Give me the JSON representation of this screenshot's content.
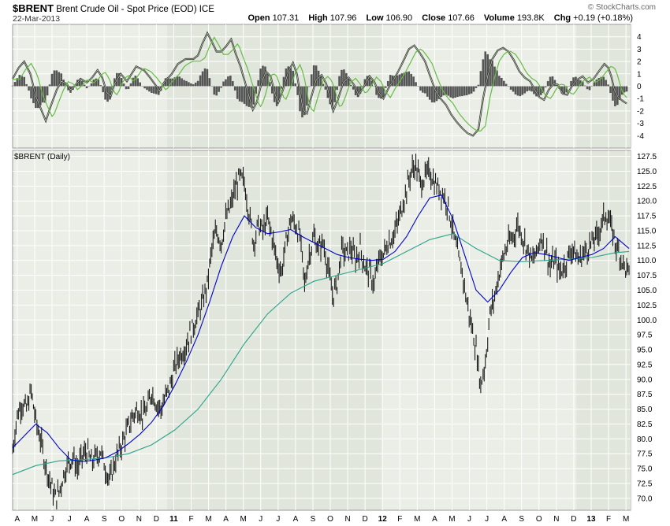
{
  "header": {
    "symbol": "$BRENT",
    "name": "Brent Crude Oil - Spot Price (EOD)",
    "exchange": "ICE",
    "date": "22-Mar-2013",
    "brand": "© StockCharts.com"
  },
  "quote": {
    "open_label": "Open",
    "open": "107.31",
    "high_label": "High",
    "high": "107.96",
    "low_label": "Low",
    "low": "106.90",
    "close_label": "Close",
    "close": "107.66",
    "volume_label": "Volume",
    "volume": "193.8K",
    "chg_label": "Chg",
    "chg": "+0.19 (+0.18%)"
  },
  "colors": {
    "price": "#1a1a1a",
    "ma_short": "#0000cc",
    "ma_long": "#2aa38a",
    "macd_line": "#333333",
    "signal_line": "#66bb44",
    "histogram": "#555555",
    "panel_bg": "#eaeee6",
    "panel_bg_alt": "#e1e6dc",
    "grid": "#ffffff"
  },
  "chart_data": [
    {
      "type": "area",
      "panel": "indicator",
      "ylim": [
        -5,
        5
      ],
      "yticks": [
        4,
        3,
        2,
        1,
        0,
        -1,
        -2,
        -3,
        -4
      ],
      "series": [],
      "points": [
        [
          0,
          0.6
        ],
        [
          8,
          1.5
        ],
        [
          15,
          2.0
        ],
        [
          23,
          1.0
        ],
        [
          30,
          -0.8
        ],
        [
          37,
          -1.9
        ],
        [
          43,
          -2.8
        ],
        [
          50,
          -1.5
        ],
        [
          57,
          -0.3
        ],
        [
          63,
          0.4
        ],
        [
          70,
          0.2
        ],
        [
          75,
          -0.3
        ],
        [
          80,
          0.0
        ],
        [
          88,
          0.6
        ],
        [
          96,
          0.3
        ],
        [
          103,
          0.7
        ],
        [
          110,
          1.3
        ],
        [
          116,
          0.7
        ],
        [
          122,
          -0.5
        ],
        [
          127,
          -0.8
        ],
        [
          132,
          0.2
        ],
        [
          140,
          1.0
        ],
        [
          148,
          0.4
        ],
        [
          153,
          0.9
        ],
        [
          160,
          1.6
        ],
        [
          170,
          1.3
        ],
        [
          178,
          0.7
        ],
        [
          186,
          0.0
        ],
        [
          190,
          -0.4
        ],
        [
          196,
          0.3
        ],
        [
          206,
          1.0
        ],
        [
          214,
          1.8
        ],
        [
          224,
          2.2
        ],
        [
          234,
          2.2
        ],
        [
          240,
          2.5
        ],
        [
          246,
          3.5
        ],
        [
          252,
          4.3
        ],
        [
          258,
          3.6
        ],
        [
          264,
          2.8
        ],
        [
          270,
          2.8
        ],
        [
          276,
          3.2
        ],
        [
          283,
          3.8
        ],
        [
          289,
          2.6
        ],
        [
          295,
          1.6
        ],
        [
          300,
          0.5
        ],
        [
          306,
          -0.8
        ],
        [
          311,
          -1.9
        ],
        [
          316,
          -1.3
        ],
        [
          322,
          0.2
        ],
        [
          328,
          1.2
        ],
        [
          334,
          0.8
        ],
        [
          340,
          -0.7
        ],
        [
          344,
          -1.3
        ],
        [
          350,
          -0.3
        ],
        [
          357,
          1.2
        ],
        [
          363,
          1.9
        ],
        [
          368,
          1.0
        ],
        [
          372,
          -0.5
        ],
        [
          376,
          -1.9
        ],
        [
          381,
          -2.2
        ],
        [
          386,
          -1.0
        ],
        [
          393,
          0.5
        ],
        [
          400,
          0.9
        ],
        [
          406,
          0.2
        ],
        [
          411,
          -1.0
        ],
        [
          415,
          -2.0
        ],
        [
          421,
          -1.1
        ],
        [
          428,
          0.3
        ],
        [
          435,
          0.7
        ],
        [
          442,
          0.1
        ],
        [
          448,
          -0.7
        ],
        [
          455,
          0.0
        ],
        [
          462,
          0.8
        ],
        [
          468,
          0.4
        ],
        [
          474,
          -0.5
        ],
        [
          480,
          -1.0
        ],
        [
          487,
          -0.1
        ],
        [
          494,
          0.6
        ],
        [
          500,
          1.3
        ],
        [
          507,
          2.2
        ],
        [
          513,
          3.0
        ],
        [
          520,
          3.3
        ],
        [
          527,
          2.7
        ],
        [
          534,
          2.0
        ],
        [
          540,
          0.9
        ],
        [
          547,
          -0.3
        ],
        [
          554,
          -1.0
        ],
        [
          561,
          -1.5
        ],
        [
          568,
          -2.3
        ],
        [
          575,
          -2.9
        ],
        [
          582,
          -3.4
        ],
        [
          589,
          -3.8
        ],
        [
          596,
          -4.0
        ],
        [
          603,
          -3.5
        ],
        [
          609,
          -1.0
        ],
        [
          615,
          0.8
        ],
        [
          621,
          2.2
        ],
        [
          628,
          2.9
        ],
        [
          635,
          3.1
        ],
        [
          642,
          2.8
        ],
        [
          649,
          2.1
        ],
        [
          656,
          1.2
        ],
        [
          663,
          0.7
        ],
        [
          670,
          0.4
        ],
        [
          676,
          -0.3
        ],
        [
          682,
          -0.9
        ],
        [
          688,
          -1.1
        ],
        [
          694,
          -0.3
        ],
        [
          700,
          0.2
        ],
        [
          706,
          0.1
        ],
        [
          712,
          -0.6
        ],
        [
          718,
          -0.7
        ],
        [
          724,
          0.0
        ],
        [
          730,
          0.5
        ],
        [
          738,
          0.8
        ],
        [
          745,
          0.3
        ],
        [
          752,
          0.6
        ],
        [
          760,
          1.3
        ],
        [
          766,
          1.8
        ],
        [
          771,
          1.5
        ],
        [
          775,
          0.8
        ],
        [
          779,
          -0.3
        ],
        [
          784,
          -0.9
        ],
        [
          790,
          -1.2
        ],
        [
          795,
          -1.4
        ]
      ]
    },
    {
      "type": "line",
      "panel": "price",
      "title": "$BRENT (Daily)",
      "ylim": [
        68,
        128.5
      ],
      "yticks": [
        127.5,
        125.0,
        122.5,
        120.0,
        117.5,
        115.0,
        112.5,
        110.0,
        107.5,
        105.0,
        102.5,
        100.0,
        97.5,
        95.0,
        92.5,
        90.0,
        87.5,
        85.0,
        82.5,
        80.0,
        77.5,
        75.0,
        72.5,
        70.0
      ],
      "x_labels": [
        "A",
        "M",
        "J",
        "J",
        "A",
        "S",
        "O",
        "N",
        "D",
        "11",
        "F",
        "M",
        "A",
        "M",
        "J",
        "J",
        "A",
        "S",
        "O",
        "N",
        "D",
        "12",
        "F",
        "M",
        "A",
        "M",
        "J",
        "J",
        "A",
        "S",
        "O",
        "N",
        "D",
        "13",
        "F",
        "M"
      ],
      "series": [],
      "price_points": [
        [
          0,
          78
        ],
        [
          6,
          84
        ],
        [
          12,
          86
        ],
        [
          18,
          85
        ],
        [
          24,
          88
        ],
        [
          30,
          83
        ],
        [
          36,
          80
        ],
        [
          42,
          76
        ],
        [
          48,
          73
        ],
        [
          55,
          70
        ],
        [
          60,
          71
        ],
        [
          66,
          74
        ],
        [
          72,
          76
        ],
        [
          78,
          77
        ],
        [
          84,
          75
        ],
        [
          90,
          77
        ],
        [
          96,
          78
        ],
        [
          102,
          76
        ],
        [
          108,
          77
        ],
        [
          114,
          78
        ],
        [
          120,
          75
        ],
        [
          126,
          73
        ],
        [
          132,
          76
        ],
        [
          138,
          78
        ],
        [
          144,
          80
        ],
        [
          150,
          82
        ],
        [
          156,
          84
        ],
        [
          162,
          85
        ],
        [
          168,
          84
        ],
        [
          174,
          85
        ],
        [
          180,
          88
        ],
        [
          186,
          86
        ],
        [
          192,
          85
        ],
        [
          198,
          87
        ],
        [
          204,
          89
        ],
        [
          210,
          92
        ],
        [
          216,
          94
        ],
        [
          222,
          95
        ],
        [
          228,
          97
        ],
        [
          234,
          99
        ],
        [
          240,
          101
        ],
        [
          246,
          103
        ],
        [
          252,
          106
        ],
        [
          258,
          112
        ],
        [
          264,
          115
        ],
        [
          270,
          113
        ],
        [
          276,
          117
        ],
        [
          282,
          119
        ],
        [
          288,
          122
        ],
        [
          294,
          124
        ],
        [
          300,
          123
        ],
        [
          306,
          118
        ],
        [
          312,
          113
        ],
        [
          318,
          116
        ],
        [
          324,
          115
        ],
        [
          330,
          117
        ],
        [
          336,
          114
        ],
        [
          342,
          110
        ],
        [
          348,
          108
        ],
        [
          354,
          113
        ],
        [
          360,
          117
        ],
        [
          366,
          116
        ],
        [
          372,
          114
        ],
        [
          378,
          106
        ],
        [
          384,
          111
        ],
        [
          390,
          114
        ],
        [
          396,
          112
        ],
        [
          402,
          113
        ],
        [
          408,
          109
        ],
        [
          414,
          104
        ],
        [
          420,
          106
        ],
        [
          426,
          112
        ],
        [
          432,
          111
        ],
        [
          438,
          112
        ],
        [
          444,
          110
        ],
        [
          450,
          112
        ],
        [
          456,
          109
        ],
        [
          462,
          108
        ],
        [
          468,
          106
        ],
        [
          474,
          110
        ],
        [
          480,
          111
        ],
        [
          486,
          113
        ],
        [
          492,
          114
        ],
        [
          498,
          116
        ],
        [
          504,
          119
        ],
        [
          510,
          122
        ],
        [
          516,
          125
        ],
        [
          522,
          126
        ],
        [
          528,
          123
        ],
        [
          534,
          124
        ],
        [
          540,
          125
        ],
        [
          546,
          123
        ],
        [
          552,
          122
        ],
        [
          558,
          121
        ],
        [
          564,
          119
        ],
        [
          570,
          115
        ],
        [
          576,
          111
        ],
        [
          582,
          108
        ],
        [
          588,
          103
        ],
        [
          594,
          99
        ],
        [
          600,
          95
        ],
        [
          606,
          89
        ],
        [
          612,
          93
        ],
        [
          618,
          101
        ],
        [
          624,
          104
        ],
        [
          630,
          108
        ],
        [
          636,
          111
        ],
        [
          642,
          113
        ],
        [
          648,
          114
        ],
        [
          654,
          116
        ],
        [
          660,
          114
        ],
        [
          666,
          112
        ],
        [
          672,
          110
        ],
        [
          678,
          111
        ],
        [
          684,
          114
        ],
        [
          690,
          112
        ],
        [
          696,
          109
        ],
        [
          702,
          110
        ],
        [
          708,
          108
        ],
        [
          714,
          109
        ],
        [
          720,
          111
        ],
        [
          726,
          112
        ],
        [
          732,
          110
        ],
        [
          738,
          111
        ],
        [
          744,
          112
        ],
        [
          750,
          113
        ],
        [
          756,
          114
        ],
        [
          762,
          116
        ],
        [
          768,
          118
        ],
        [
          774,
          116
        ],
        [
          780,
          113
        ],
        [
          786,
          111
        ],
        [
          792,
          109
        ],
        [
          798,
          107.7
        ]
      ],
      "ma50_points": [
        [
          0,
          78.5
        ],
        [
          15,
          80.5
        ],
        [
          30,
          82.5
        ],
        [
          45,
          81
        ],
        [
          60,
          78.5
        ],
        [
          75,
          76.5
        ],
        [
          90,
          76.2
        ],
        [
          105,
          76.4
        ],
        [
          120,
          76.8
        ],
        [
          135,
          77.8
        ],
        [
          150,
          79.2
        ],
        [
          165,
          80.8
        ],
        [
          180,
          82.8
        ],
        [
          195,
          85.5
        ],
        [
          210,
          89
        ],
        [
          225,
          93
        ],
        [
          240,
          97.5
        ],
        [
          255,
          103
        ],
        [
          270,
          109
        ],
        [
          285,
          114
        ],
        [
          300,
          117.5
        ],
        [
          315,
          115.5
        ],
        [
          330,
          114.5
        ],
        [
          345,
          114.8
        ],
        [
          360,
          115.2
        ],
        [
          375,
          114
        ],
        [
          390,
          113
        ],
        [
          405,
          112
        ],
        [
          420,
          111
        ],
        [
          435,
          110.5
        ],
        [
          450,
          110.2
        ],
        [
          465,
          110
        ],
        [
          480,
          110.2
        ],
        [
          495,
          111.5
        ],
        [
          510,
          114
        ],
        [
          525,
          117.5
        ],
        [
          540,
          120.5
        ],
        [
          555,
          121
        ],
        [
          570,
          117
        ],
        [
          585,
          111
        ],
        [
          600,
          105
        ],
        [
          615,
          103
        ],
        [
          630,
          105
        ],
        [
          645,
          108
        ],
        [
          660,
          110.5
        ],
        [
          675,
          111.3
        ],
        [
          690,
          111
        ],
        [
          705,
          110.5
        ],
        [
          720,
          110
        ],
        [
          735,
          110.5
        ],
        [
          750,
          111
        ],
        [
          765,
          112
        ],
        [
          780,
          114
        ],
        [
          798,
          112
        ]
      ],
      "ma200_points": [
        [
          0,
          74
        ],
        [
          30,
          75.5
        ],
        [
          60,
          76.3
        ],
        [
          90,
          76.5
        ],
        [
          120,
          76.8
        ],
        [
          150,
          77.5
        ],
        [
          180,
          79
        ],
        [
          210,
          81.5
        ],
        [
          240,
          85
        ],
        [
          270,
          90
        ],
        [
          300,
          96
        ],
        [
          330,
          101
        ],
        [
          360,
          104.5
        ],
        [
          390,
          106.5
        ],
        [
          420,
          107.5
        ],
        [
          450,
          108.5
        ],
        [
          480,
          109.5
        ],
        [
          510,
          111.5
        ],
        [
          540,
          113.5
        ],
        [
          570,
          114.5
        ],
        [
          600,
          112
        ],
        [
          630,
          110
        ],
        [
          660,
          109.8
        ],
        [
          690,
          110
        ],
        [
          720,
          110.2
        ],
        [
          750,
          110.5
        ],
        [
          780,
          111.3
        ],
        [
          798,
          111.5
        ]
      ]
    }
  ]
}
